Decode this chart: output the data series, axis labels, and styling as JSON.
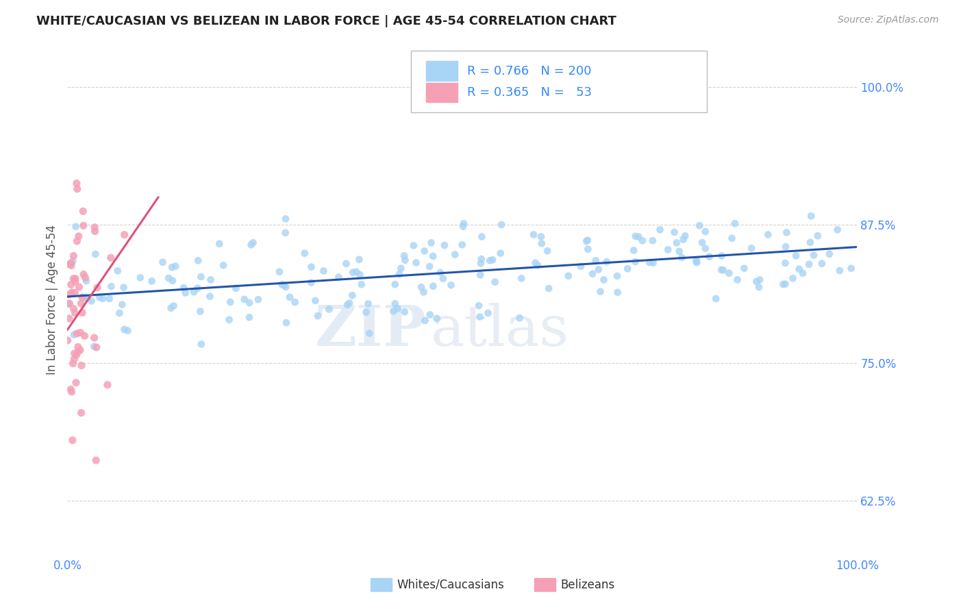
{
  "title": "WHITE/CAUCASIAN VS BELIZEAN IN LABOR FORCE | AGE 45-54 CORRELATION CHART",
  "source_text": "Source: ZipAtlas.com",
  "ylabel": "In Labor Force | Age 45-54",
  "xlim": [
    0.0,
    1.0
  ],
  "ylim": [
    0.575,
    1.04
  ],
  "xtick_labels": [
    "0.0%",
    "100.0%"
  ],
  "ytick_labels": [
    "62.5%",
    "75.0%",
    "87.5%",
    "100.0%"
  ],
  "ytick_positions": [
    0.625,
    0.75,
    0.875,
    1.0
  ],
  "legend_blue_R": "0.766",
  "legend_blue_N": "200",
  "legend_pink_R": "0.365",
  "legend_pink_N": "53",
  "blue_color": "#A8D4F5",
  "pink_color": "#F5A0B5",
  "blue_line_color": "#2255AA",
  "pink_line_color": "#E0507A",
  "watermark_zip": "ZIP",
  "watermark_atlas": "atlas",
  "legend_label_blue": "Whites/Caucasians",
  "legend_label_pink": "Belizeans",
  "blue_trend_x0": 0.0,
  "blue_trend_x1": 1.0,
  "blue_trend_y0": 0.81,
  "blue_trend_y1": 0.855,
  "pink_trend_x0": 0.0,
  "pink_trend_x1": 0.115,
  "pink_trend_y0": 0.78,
  "pink_trend_y1": 0.9
}
